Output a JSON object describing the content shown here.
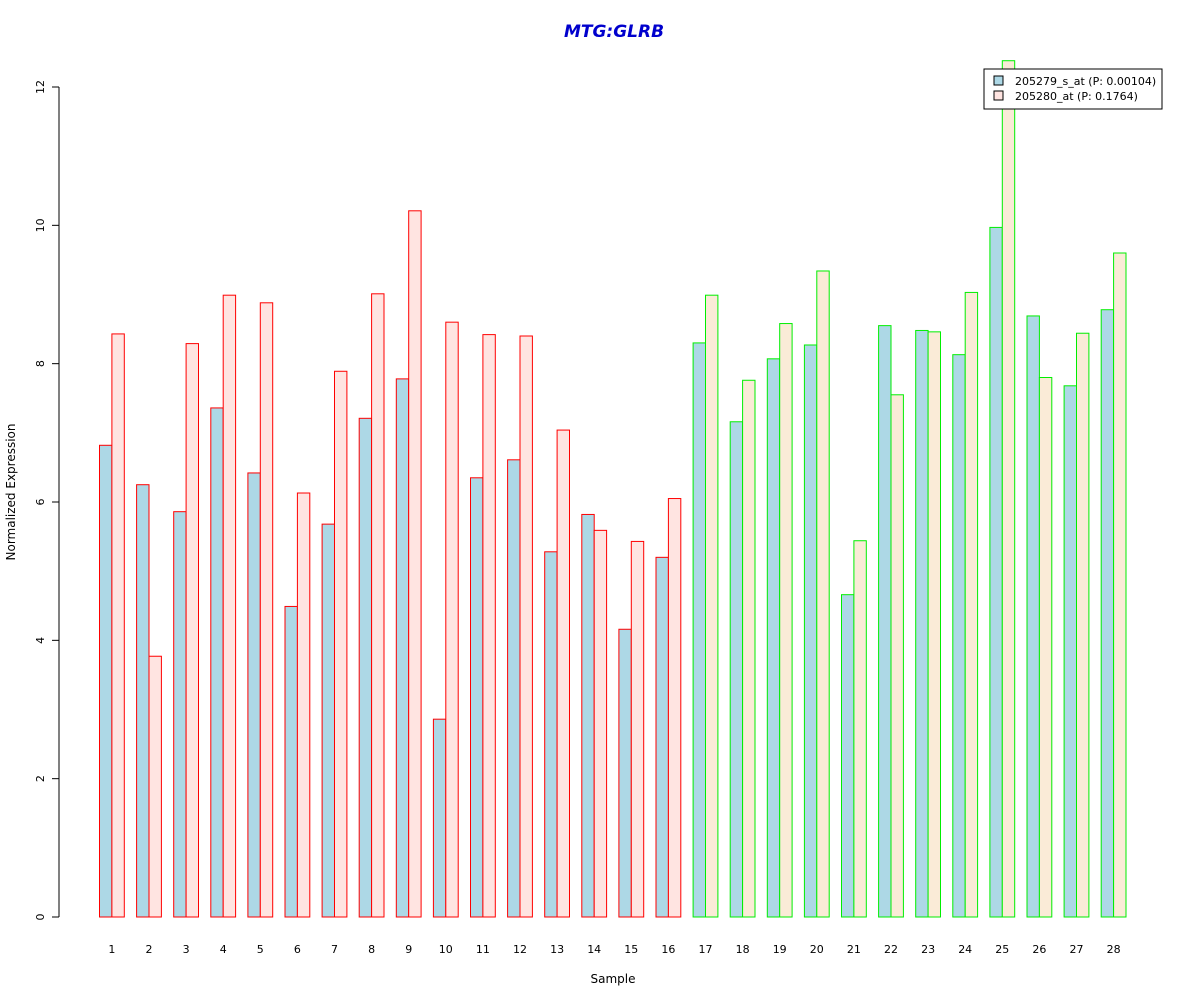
{
  "chart_data": {
    "type": "bar",
    "title": "MTG:GLRB",
    "xlabel": "Sample",
    "ylabel": "Normalized Expression",
    "ylim": [
      0,
      12
    ],
    "yticks": [
      "0",
      "2",
      "4",
      "6",
      "8",
      "10",
      "12"
    ],
    "categories": [
      "1",
      "2",
      "3",
      "4",
      "5",
      "6",
      "7",
      "8",
      "9",
      "10",
      "11",
      "12",
      "13",
      "14",
      "15",
      "16",
      "17",
      "18",
      "19",
      "20",
      "21",
      "22",
      "23",
      "24",
      "25",
      "26",
      "27",
      "28"
    ],
    "series": [
      {
        "name": "205279_s_at (P: 0.00104)",
        "fill": "#add8e6",
        "values": [
          6.82,
          6.25,
          5.86,
          7.36,
          6.42,
          4.49,
          5.68,
          7.21,
          7.78,
          2.86,
          6.35,
          6.61,
          5.28,
          5.82,
          4.16,
          5.2,
          8.3,
          7.16,
          8.07,
          8.27,
          4.66,
          8.55,
          8.48,
          8.13,
          9.97,
          8.69,
          7.68,
          8.78
        ]
      },
      {
        "name": "205280_at (P: 0.1764)",
        "fill": "#ffe4e1",
        "fill_alt": "#faebd7",
        "values": [
          8.43,
          3.77,
          8.29,
          8.99,
          8.88,
          6.13,
          7.89,
          9.01,
          10.21,
          8.6,
          8.42,
          8.4,
          7.04,
          5.59,
          5.43,
          6.05,
          8.99,
          7.76,
          8.58,
          9.34,
          5.44,
          7.55,
          8.46,
          9.03,
          12.38,
          7.8,
          8.44,
          9.6
        ]
      }
    ],
    "group_borders": [
      "#ff0000",
      "#ff0000",
      "#ff0000",
      "#ff0000",
      "#ff0000",
      "#ff0000",
      "#ff0000",
      "#ff0000",
      "#ff0000",
      "#ff0000",
      "#ff0000",
      "#ff0000",
      "#ff0000",
      "#ff0000",
      "#ff0000",
      "#ff0000",
      "#00ee00",
      "#00ee00",
      "#00ee00",
      "#00ee00",
      "#00ee00",
      "#00ee00",
      "#00ee00",
      "#00ee00",
      "#00ee00",
      "#00ee00",
      "#00ee00",
      "#00ee00"
    ],
    "legend_position": "top-right",
    "title_color": "#0000cd",
    "grid": false
  }
}
